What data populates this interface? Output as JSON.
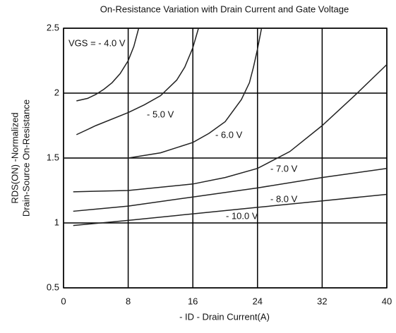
{
  "chart_data": {
    "type": "line",
    "title": "On-Resistance Variation with Drain Current and Gate Voltage",
    "xlabel": "- ID - Drain Current(A)",
    "ylabel": [
      "RDS(ON) -Normalized",
      "Drain-Source On-Resistance"
    ],
    "xlim": [
      0,
      40
    ],
    "xticks": [
      0,
      8,
      16,
      24,
      32,
      40
    ],
    "ylim": [
      0.5,
      2.5
    ],
    "yticks": [
      0.5,
      1,
      1.5,
      2,
      2.5
    ],
    "grid": true,
    "series": [
      {
        "name": "VGS = - 4.0 V",
        "color": "#222222",
        "x": [
          1.6,
          3,
          4,
          5,
          6,
          7,
          8,
          8.7,
          9.3
        ],
        "values": [
          1.94,
          1.96,
          1.99,
          2.03,
          2.08,
          2.15,
          2.25,
          2.36,
          2.5
        ]
      },
      {
        "name": "- 5.0 V",
        "color": "#222222",
        "x": [
          1.6,
          4,
          8,
          10,
          12,
          14,
          15,
          16,
          16.7
        ],
        "values": [
          1.68,
          1.75,
          1.85,
          1.91,
          1.98,
          2.1,
          2.2,
          2.35,
          2.5
        ]
      },
      {
        "name": "- 6.0 V",
        "color": "#222222",
        "x": [
          0,
          4,
          8,
          12,
          16,
          18,
          20,
          22,
          23,
          23.5,
          24,
          24.5
        ],
        "values": [
          1.5,
          1.5,
          1.5,
          1.54,
          1.62,
          1.69,
          1.78,
          1.95,
          2.08,
          2.2,
          2.34,
          2.5
        ]
      },
      {
        "name": "- 7.0 V",
        "color": "#222222",
        "x": [
          1.2,
          8,
          16,
          20,
          24,
          28,
          32,
          36,
          40
        ],
        "values": [
          1.24,
          1.25,
          1.3,
          1.35,
          1.42,
          1.55,
          1.75,
          1.98,
          2.22
        ]
      },
      {
        "name": "- 8.0 V",
        "color": "#222222",
        "x": [
          1.2,
          8,
          16,
          24,
          32,
          40
        ],
        "values": [
          1.09,
          1.13,
          1.2,
          1.27,
          1.35,
          1.42
        ]
      },
      {
        "name": "- 10.0 V",
        "color": "#222222",
        "x": [
          1.2,
          8,
          16,
          24,
          32,
          40
        ],
        "values": [
          0.98,
          1.02,
          1.07,
          1.12,
          1.17,
          1.22
        ]
      }
    ]
  }
}
